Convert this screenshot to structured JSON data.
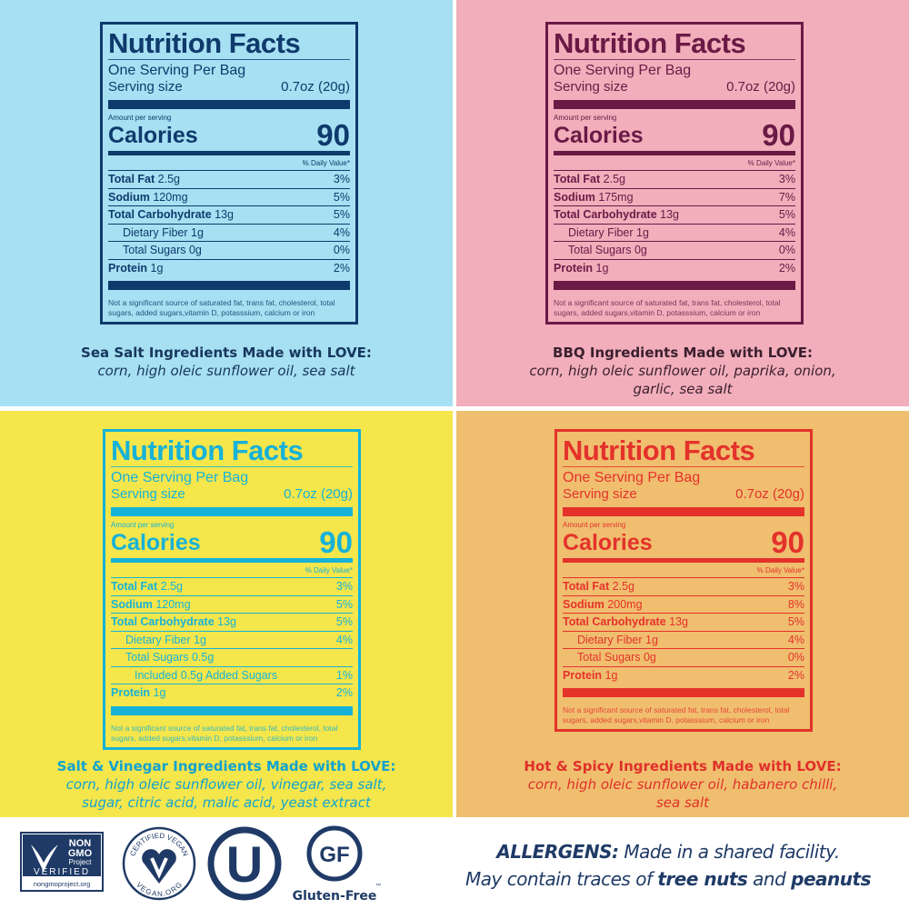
{
  "panels": [
    {
      "flavor": "sea-salt",
      "bg": "#a6e0f2",
      "color": "#0f3a6c",
      "caption_color": "#17375e",
      "title": "Nutrition Facts",
      "servings": "One Serving Per Bag",
      "serving_size_label": "Serving size",
      "serving_size": "0.7oz (20g)",
      "amount_per_serving": "Amount per serving",
      "calories_label": "Calories",
      "calories": "90",
      "daily_value": "% Daily Value*",
      "rows": [
        {
          "name": "Total Fat",
          "amount": "2.5g",
          "dv": "3%",
          "bold": true,
          "indent": 0
        },
        {
          "name": "Sodium",
          "amount": "120mg",
          "dv": "5%",
          "bold": true,
          "indent": 0
        },
        {
          "name": "Total Carbohydrate",
          "amount": "13g",
          "dv": "5%",
          "bold": true,
          "indent": 0
        },
        {
          "name": "Dietary Fiber",
          "amount": "1g",
          "dv": "4%",
          "bold": false,
          "indent": 1
        },
        {
          "name": "Total Sugars",
          "amount": "0g",
          "dv": "0%",
          "bold": false,
          "indent": 1
        },
        {
          "name": "Protein",
          "amount": "1g",
          "dv": "2%",
          "bold": true,
          "indent": 0
        }
      ],
      "footnote": "Not a significant source of saturated fat, trans fat, cholesterol, total sugars, added sugars,vitamin D, potasssium, calcium or iron",
      "ingredients_heading": "Sea Salt Ingredients Made with LOVE:",
      "ingredients": [
        "corn, high oleic sunflower oil, sea salt"
      ]
    },
    {
      "flavor": "bbq",
      "bg": "#f2aebb",
      "color": "#6a1a45",
      "caption_color": "#3b1f2e",
      "title": "Nutrition Facts",
      "servings": "One Serving Per Bag",
      "serving_size_label": "Serving size",
      "serving_size": "0.7oz (20g)",
      "amount_per_serving": "Amount per serving",
      "calories_label": "Calories",
      "calories": "90",
      "daily_value": "% Daily Value*",
      "rows": [
        {
          "name": "Total Fat",
          "amount": "2.5g",
          "dv": "3%",
          "bold": true,
          "indent": 0
        },
        {
          "name": "Sodium",
          "amount": "175mg",
          "dv": "7%",
          "bold": true,
          "indent": 0
        },
        {
          "name": "Total Carbohydrate",
          "amount": "13g",
          "dv": "5%",
          "bold": true,
          "indent": 0
        },
        {
          "name": "Dietary Fiber",
          "amount": "1g",
          "dv": "4%",
          "bold": false,
          "indent": 1
        },
        {
          "name": "Total Sugars",
          "amount": "0g",
          "dv": "0%",
          "bold": false,
          "indent": 1
        },
        {
          "name": "Protein",
          "amount": "1g",
          "dv": "2%",
          "bold": true,
          "indent": 0
        }
      ],
      "footnote": "Not a significant source of saturated fat, trans fat, cholesterol, total sugars, added sugars,vitamin D, potasssium, calcium or iron",
      "ingredients_heading": "BBQ Ingredients Made with LOVE:",
      "ingredients": [
        "corn, high oleic sunflower oil, paprika, onion,",
        "garlic, sea salt"
      ]
    },
    {
      "flavor": "salt-vinegar",
      "bg": "#f4e64b",
      "color": "#16b2d8",
      "caption_color": "#12a3cf",
      "title": "Nutrition Facts",
      "servings": "One Serving Per Bag",
      "serving_size_label": "Serving size",
      "serving_size": "0.7oz (20g)",
      "amount_per_serving": "Amount per serving",
      "calories_label": "Calories",
      "calories": "90",
      "daily_value": "% Daily Value*",
      "rows": [
        {
          "name": "Total Fat",
          "amount": "2.5g",
          "dv": "3%",
          "bold": true,
          "indent": 0
        },
        {
          "name": "Sodium",
          "amount": "120mg",
          "dv": "5%",
          "bold": true,
          "indent": 0
        },
        {
          "name": "Total Carbohydrate",
          "amount": "13g",
          "dv": "5%",
          "bold": true,
          "indent": 0
        },
        {
          "name": "Dietary Fiber",
          "amount": "1g",
          "dv": "4%",
          "bold": false,
          "indent": 1
        },
        {
          "name": "Total Sugars",
          "amount": "0.5g",
          "dv": "",
          "bold": false,
          "indent": 1
        },
        {
          "name": "Included",
          "amount": "0.5g Added Sugars",
          "dv": "1%",
          "bold": false,
          "indent": 2
        },
        {
          "name": "Protein",
          "amount": "1g",
          "dv": "2%",
          "bold": true,
          "indent": 0
        }
      ],
      "footnote": "Not a significant source of saturated fat, trans fat, cholesterol, total sugars, added sugars,vitamin D, potasssium, calcium or iron",
      "ingredients_heading": "Salt & Vinegar Ingredients Made with LOVE:",
      "ingredients": [
        "corn, high oleic sunflower oil, vinegar, sea salt,",
        "sugar, citric acid, malic acid, yeast extract"
      ]
    },
    {
      "flavor": "hot-spicy",
      "bg": "#f0be6f",
      "color": "#e4322b",
      "caption_color": "#e0302a",
      "title": "Nutrition Facts",
      "servings": "One Serving Per Bag",
      "serving_size_label": "Serving size",
      "serving_size": "0.7oz (20g)",
      "amount_per_serving": "Amount per serving",
      "calories_label": "Calories",
      "calories": "90",
      "daily_value": "% Daily Value*",
      "rows": [
        {
          "name": "Total Fat",
          "amount": "2.5g",
          "dv": "3%",
          "bold": true,
          "indent": 0
        },
        {
          "name": "Sodium",
          "amount": "200mg",
          "dv": "8%",
          "bold": true,
          "indent": 0
        },
        {
          "name": "Total Carbohydrate",
          "amount": "13g",
          "dv": "5%",
          "bold": true,
          "indent": 0
        },
        {
          "name": "Dietary Fiber",
          "amount": "1g",
          "dv": "4%",
          "bold": false,
          "indent": 1
        },
        {
          "name": "Total Sugars",
          "amount": "0g",
          "dv": "0%",
          "bold": false,
          "indent": 1
        },
        {
          "name": "Protein",
          "amount": "1g",
          "dv": "2%",
          "bold": true,
          "indent": 0
        }
      ],
      "footnote": "Not a significant source of saturated fat, trans fat, cholesterol, total sugars, added sugars,vitamin D, potasssium, calcium or iron",
      "ingredients_heading": "Hot & Spicy Ingredients Made with LOVE:",
      "ingredients": [
        "corn, high oleic sunflower oil, habanero chilli,",
        "sea salt"
      ]
    }
  ],
  "certifications": {
    "non_gmo": {
      "line1": "NON",
      "line2": "GMO",
      "line3": "Project",
      "line4": "VERIFIED",
      "url": "nongmoproject.org"
    },
    "vegan": {
      "top": "CERTIFIED VEGAN",
      "bottom": "VEGAN.ORG"
    },
    "kosher": {
      "letter": "U"
    },
    "gluten_free": {
      "mark": "GF",
      "label": "Gluten-Free",
      "tm": "™"
    }
  },
  "allergens": {
    "heading": "ALLERGENS:",
    "line1": "Made in a shared facility.",
    "line2_a": "May contain traces of",
    "nuts": "tree nuts",
    "and": "and",
    "peanuts": "peanuts"
  }
}
